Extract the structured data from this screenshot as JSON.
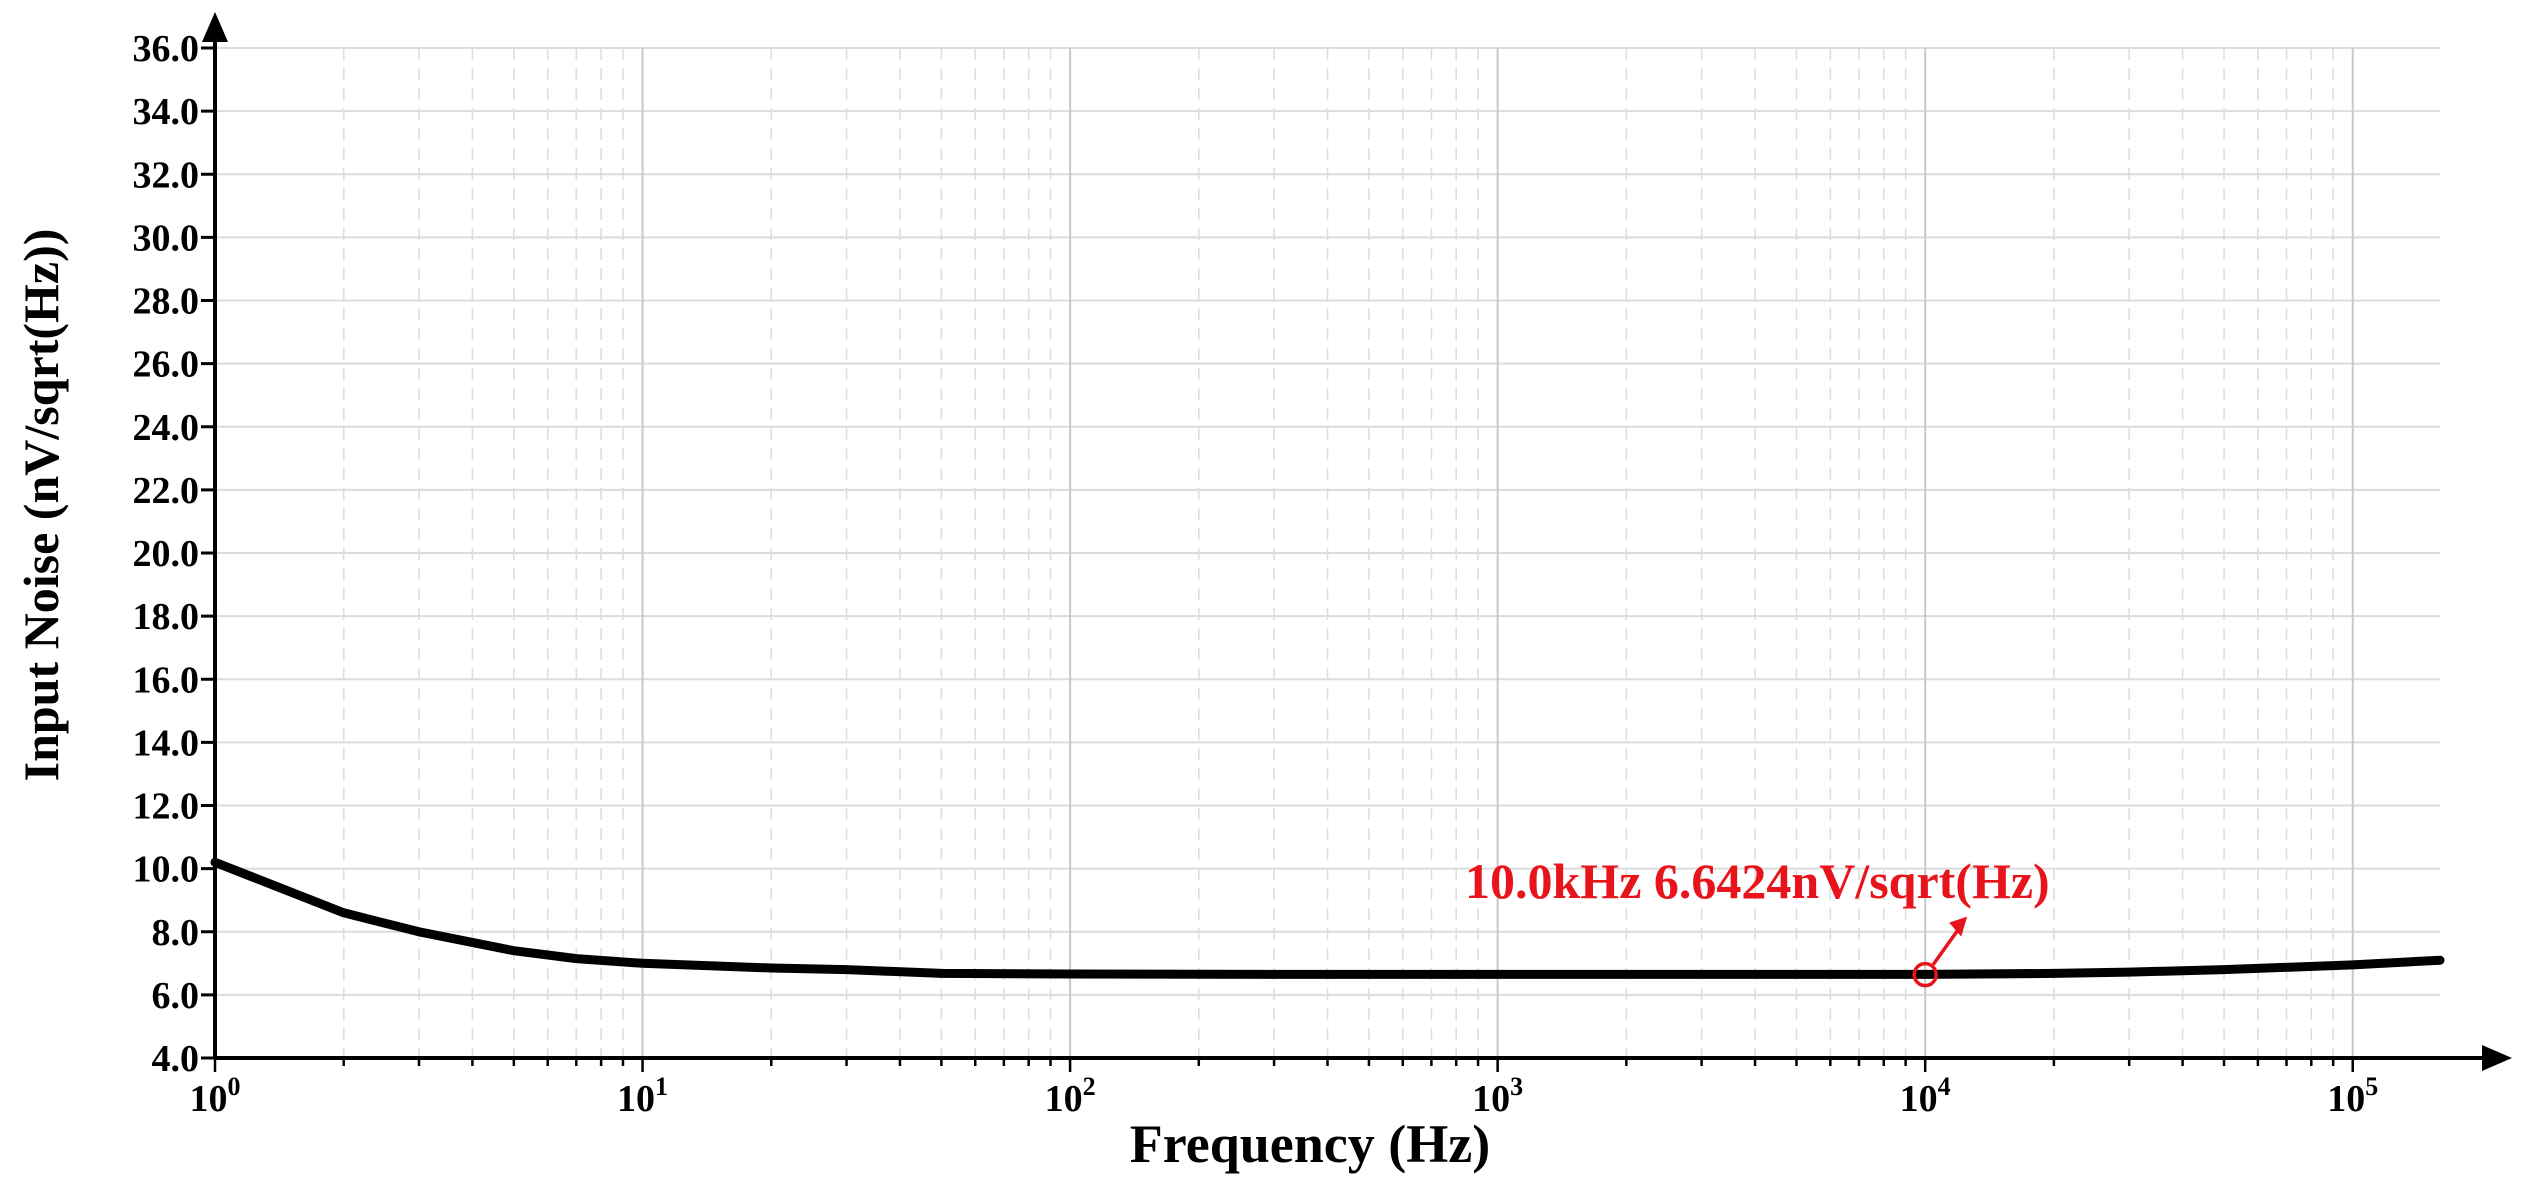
{
  "chart_data": {
    "type": "line",
    "xlabel": "Frequency (Hz)",
    "ylabel": "Input Noise (nV/sqrt(Hz))",
    "x_scale": "log",
    "xlim": [
      1,
      160000
    ],
    "ylim": [
      4,
      36
    ],
    "y_ticks": [
      "4.0",
      "6.0",
      "8.0",
      "10.0",
      "12.0",
      "14.0",
      "16.0",
      "18.0",
      "20.0",
      "22.0",
      "24.0",
      "26.0",
      "28.0",
      "30.0",
      "32.0",
      "34.0",
      "36.0"
    ],
    "x_ticks": [
      {
        "value": 1,
        "base": "10",
        "exp": "0"
      },
      {
        "value": 10,
        "base": "10",
        "exp": "1"
      },
      {
        "value": 100,
        "base": "10",
        "exp": "2"
      },
      {
        "value": 1000,
        "base": "10",
        "exp": "3"
      },
      {
        "value": 10000,
        "base": "10",
        "exp": "4"
      },
      {
        "value": 100000,
        "base": "10",
        "exp": "5"
      }
    ],
    "grid": true,
    "series": [
      {
        "color": "#000000",
        "x": [
          1,
          2,
          3,
          5,
          7,
          10,
          20,
          30,
          50,
          100,
          300,
          1000,
          3000,
          10000,
          20000,
          30000,
          50000,
          100000,
          160000
        ],
        "y": [
          10.2,
          8.6,
          8.0,
          7.4,
          7.15,
          7.0,
          6.85,
          6.8,
          6.68,
          6.66,
          6.65,
          6.65,
          6.65,
          6.65,
          6.68,
          6.72,
          6.8,
          6.95,
          7.1
        ]
      }
    ],
    "annotations": [
      {
        "x": 10000,
        "y": 6.6424,
        "text": "10.0kHz  6.6424nV/sqrt(Hz)",
        "color": "#e8141c"
      }
    ]
  }
}
